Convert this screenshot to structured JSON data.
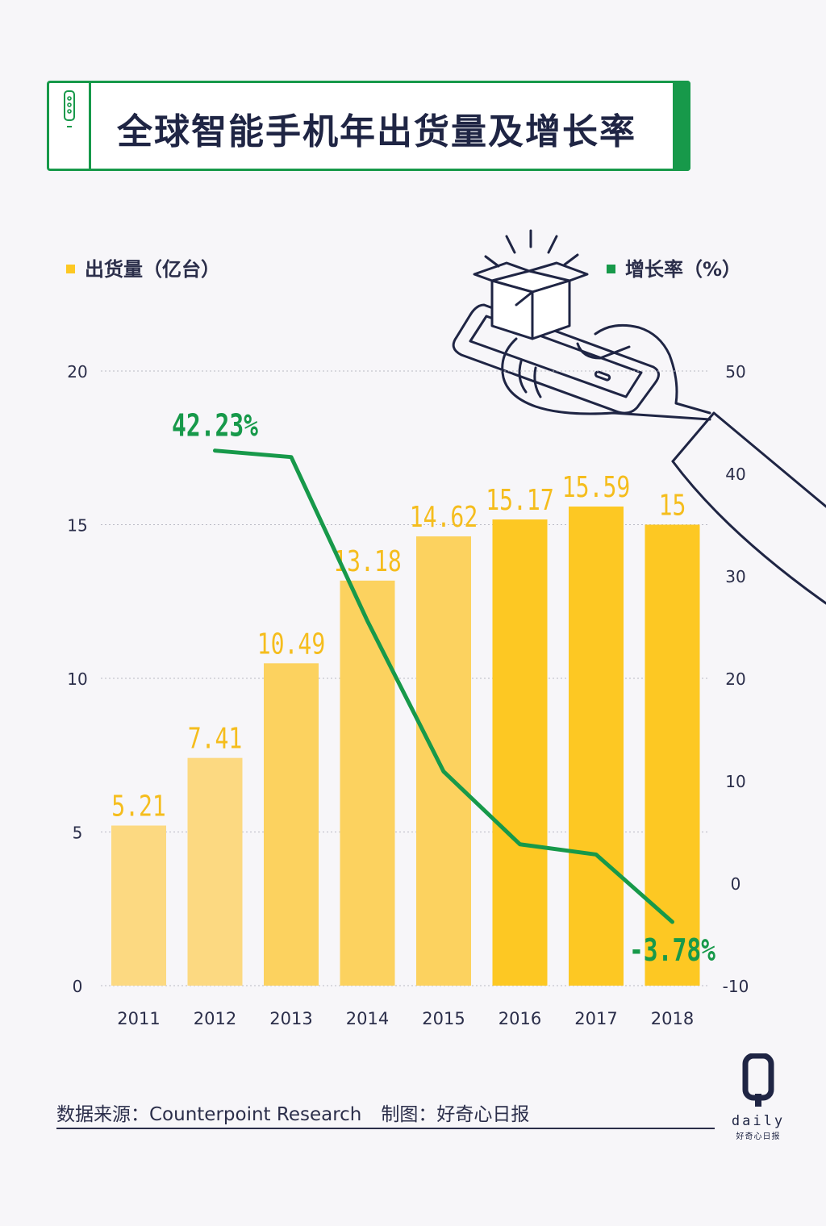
{
  "header": {
    "title": "全球智能手机年出货量及增长率"
  },
  "legend": {
    "shipments_label": "出货量（亿台）",
    "growth_label": "增长率（%）"
  },
  "footer": {
    "source": "数据来源：Counterpoint Research",
    "credit": "制图：好奇心日报"
  },
  "logo": {
    "letter": "Q",
    "text": "daily",
    "cn": "好奇心日报"
  },
  "colors": {
    "bar_light": "#fcd981",
    "bar_mid": "#fcd25f",
    "bar_dark": "#fdc823",
    "line": "#17994a",
    "label_yellow": "#f5bd1d",
    "text": "#2b2e4a"
  },
  "chart_data": {
    "type": "bar",
    "categories": [
      "2011",
      "2012",
      "2013",
      "2014",
      "2015",
      "2016",
      "2017",
      "2018"
    ],
    "series": [
      {
        "name": "出货量（亿台）",
        "type": "bar",
        "axis": "left",
        "values": [
          5.21,
          7.41,
          10.49,
          13.18,
          14.62,
          15.17,
          15.59,
          15
        ],
        "labels": [
          "5.21",
          "7.41",
          "10.49",
          "13.18",
          "14.62",
          "15.17",
          "15.59",
          "15"
        ]
      },
      {
        "name": "增长率（%）",
        "type": "line",
        "axis": "right",
        "values": [
          null,
          42.23,
          41.6,
          25.6,
          10.9,
          3.8,
          2.8,
          -3.78
        ],
        "annotations": [
          {
            "index": 1,
            "text": "42.23%"
          },
          {
            "index": 7,
            "text": "-3.78%"
          }
        ]
      }
    ],
    "y_left": {
      "range": [
        0,
        20
      ],
      "ticks": [
        "0",
        "5",
        "10",
        "15",
        "20"
      ]
    },
    "y_right": {
      "range": [
        -10,
        50
      ],
      "ticks": [
        "-10",
        "0",
        "10",
        "20",
        "30",
        "40",
        "50"
      ]
    },
    "grid": "dotted horizontal"
  }
}
